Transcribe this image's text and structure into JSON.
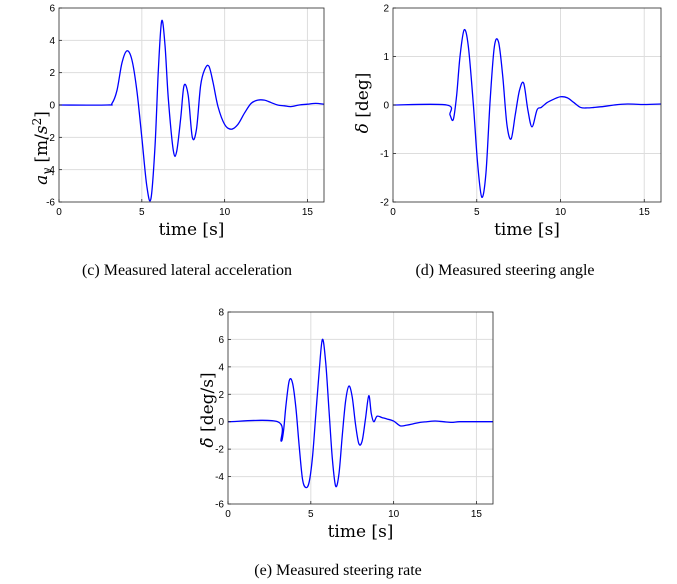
{
  "colors": {
    "line": "#0000ff",
    "grid": "#dddddd",
    "axis": "#262626"
  },
  "chart_data": [
    {
      "type": "line",
      "caption": "(c) Measured lateral acceleration",
      "xlabel": "time [s]",
      "ylabel": "a_y [m/s^2]",
      "xlim": [
        0,
        16
      ],
      "ylim": [
        -6,
        6
      ],
      "xticks": [
        0,
        5,
        10,
        15
      ],
      "yticks": [
        -6,
        -4,
        -2,
        0,
        2,
        4,
        6
      ],
      "grid": true,
      "series": [
        {
          "x": [
            0,
            2.9,
            3.2,
            3.5,
            3.8,
            4.1,
            4.4,
            4.7,
            5.0,
            5.3,
            5.55,
            5.8,
            6.0,
            6.2,
            6.4,
            6.6,
            6.9,
            7.1,
            7.35,
            7.55,
            7.8,
            8.05,
            8.3,
            8.55,
            8.8,
            9.05,
            9.3,
            9.6,
            10.0,
            10.4,
            10.8,
            11.2,
            11.6,
            12.0,
            12.4,
            12.8,
            13.2,
            13.6,
            14.0,
            14.5,
            15.0,
            15.5,
            16.0
          ],
          "y": [
            0,
            0,
            0.1,
            0.9,
            2.6,
            3.35,
            2.8,
            0.9,
            -2.0,
            -5.0,
            -5.8,
            -2.5,
            2.2,
            5.2,
            3.7,
            0.4,
            -2.8,
            -2.9,
            -0.8,
            1.2,
            0.6,
            -2.0,
            -1.5,
            1.2,
            2.2,
            2.4,
            1.4,
            -0.1,
            -1.2,
            -1.5,
            -1.2,
            -0.5,
            0.1,
            0.3,
            0.3,
            0.15,
            0.0,
            -0.05,
            -0.1,
            0.0,
            0.05,
            0.1,
            0.05
          ]
        }
      ]
    },
    {
      "type": "line",
      "caption": "(d) Measured steering angle",
      "xlabel": "time [s]",
      "ylabel": "δ [deg]",
      "xlim": [
        0,
        16
      ],
      "ylim": [
        -2,
        2
      ],
      "xticks": [
        0,
        5,
        10,
        15
      ],
      "yticks": [
        -2,
        -1,
        0,
        1,
        2
      ],
      "grid": true,
      "series": [
        {
          "x": [
            0,
            3.2,
            3.4,
            3.6,
            3.8,
            4.0,
            4.25,
            4.5,
            4.8,
            5.05,
            5.3,
            5.55,
            5.8,
            6.05,
            6.3,
            6.55,
            6.8,
            7.05,
            7.3,
            7.55,
            7.8,
            8.05,
            8.3,
            8.6,
            8.85,
            9.2,
            9.6,
            10.0,
            10.4,
            10.8,
            11.2,
            11.6,
            12.0,
            12.6,
            13.2,
            14.0,
            15.0,
            16.0
          ],
          "y": [
            0,
            0,
            -0.2,
            -0.3,
            0.2,
            1.0,
            1.55,
            1.2,
            0.0,
            -1.2,
            -1.9,
            -1.4,
            0.1,
            1.2,
            1.3,
            0.6,
            -0.4,
            -0.7,
            -0.2,
            0.3,
            0.45,
            -0.1,
            -0.45,
            -0.1,
            -0.05,
            0.05,
            0.12,
            0.17,
            0.15,
            0.05,
            -0.05,
            -0.06,
            -0.05,
            -0.03,
            0.0,
            0.02,
            0.01,
            0.02
          ]
        }
      ]
    },
    {
      "type": "line",
      "caption": "(e) Measured steering rate",
      "xlabel": "time [s]",
      "ylabel": "δ̇ [deg/s]",
      "xlim": [
        0,
        16
      ],
      "ylim": [
        -6,
        8
      ],
      "xticks": [
        0,
        5,
        10,
        15
      ],
      "yticks": [
        -6,
        -4,
        -2,
        0,
        2,
        4,
        6,
        8
      ],
      "grid": true,
      "series": [
        {
          "x": [
            0,
            3.0,
            3.2,
            3.35,
            3.5,
            3.7,
            3.9,
            4.1,
            4.3,
            4.5,
            4.7,
            4.9,
            5.1,
            5.3,
            5.5,
            5.7,
            5.9,
            6.1,
            6.3,
            6.5,
            6.7,
            6.9,
            7.1,
            7.3,
            7.5,
            7.7,
            7.9,
            8.1,
            8.3,
            8.5,
            8.65,
            8.8,
            9.0,
            9.3,
            9.6,
            10.0,
            10.4,
            10.8,
            11.2,
            11.6,
            12.0,
            12.5,
            13.0,
            13.5,
            14.0,
            15.0,
            16.0
          ],
          "y": [
            0,
            0,
            -1.4,
            -0.7,
            1.2,
            3.0,
            2.8,
            1.0,
            -1.8,
            -4.2,
            -4.8,
            -4.4,
            -2.6,
            0.5,
            3.6,
            6.0,
            4.3,
            0.8,
            -2.7,
            -4.7,
            -3.8,
            -1.0,
            1.5,
            2.6,
            1.8,
            -0.2,
            -1.6,
            -1.4,
            0.2,
            1.9,
            0.6,
            0.0,
            0.4,
            0.3,
            0.2,
            0.05,
            -0.3,
            -0.25,
            -0.15,
            -0.05,
            0.0,
            0.05,
            0.0,
            -0.05,
            0.0,
            0.0,
            0.0
          ]
        }
      ]
    }
  ]
}
